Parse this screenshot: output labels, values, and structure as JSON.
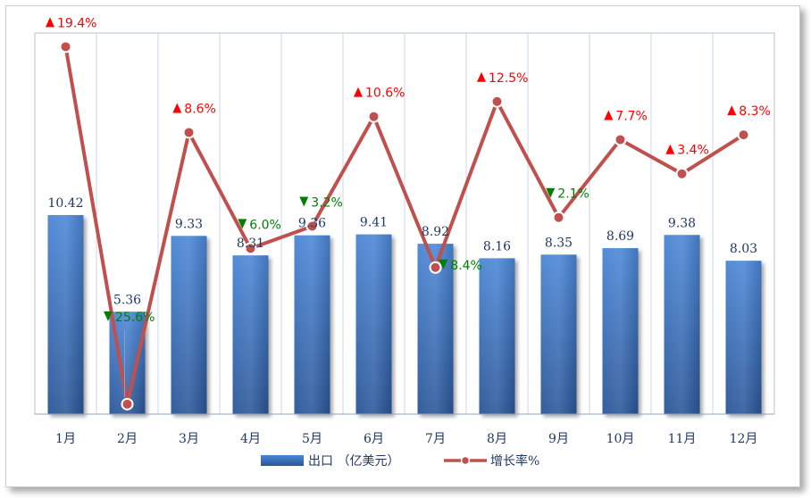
{
  "chart_data": {
    "type": "bar",
    "categories": [
      "1月",
      "2月",
      "3月",
      "4月",
      "5月",
      "6月",
      "7月",
      "8月",
      "9月",
      "10月",
      "11月",
      "12月"
    ],
    "series": [
      {
        "name": "出口（亿美元）",
        "type": "bar",
        "values": [
          10.42,
          5.36,
          9.33,
          8.31,
          9.36,
          9.41,
          8.92,
          8.16,
          8.35,
          8.69,
          9.38,
          8.03
        ],
        "labels": [
          "10.42",
          "5.36",
          "9.33",
          "8.31",
          "9.36",
          "9.41",
          "8.92",
          "8.16",
          "8.35",
          "8.69",
          "9.38",
          "8.03"
        ],
        "color": "#3a74c4"
      },
      {
        "name": "增长率%",
        "type": "line",
        "values": [
          19.4,
          -25.6,
          8.6,
          -6.0,
          -3.2,
          10.6,
          -8.4,
          12.5,
          -2.1,
          7.7,
          3.4,
          8.3
        ],
        "labels": [
          "19.4%",
          "25.6%",
          "8.6%",
          "6.0%",
          "3.2%",
          "10.6%",
          "8.4%",
          "12.5%",
          "2.1%",
          "7.7%",
          "3.4%",
          "8.3%"
        ],
        "color": "#c0504d"
      }
    ],
    "legend": {
      "position": "bottom",
      "bar_label": "出口 （亿美元）",
      "line_label": "增长率%"
    },
    "bar_ylim": [
      0,
      20
    ],
    "line_ylim": [
      -30,
      25
    ],
    "grid": "vertical",
    "colors": {
      "up": "#ff0000",
      "down": "#008000",
      "axis_text": "#1f3864"
    }
  }
}
